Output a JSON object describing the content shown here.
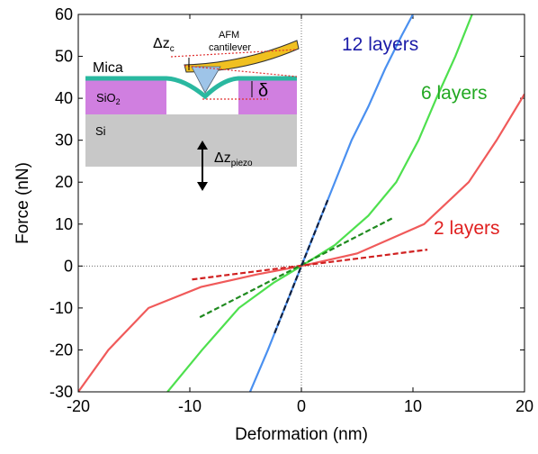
{
  "chart_data": {
    "type": "line",
    "x_label": "Deformation (nm)",
    "y_label": "Force (nN)",
    "xlim": [
      -20,
      20
    ],
    "ylim": [
      -30,
      60
    ],
    "xticks": [
      -20,
      -10,
      0,
      10,
      20
    ],
    "yticks": [
      -30,
      -20,
      -10,
      0,
      10,
      20,
      30,
      40,
      50,
      60
    ],
    "series": [
      {
        "name": "12 layers",
        "color": "#4a90f0",
        "label_color": "#1c1ca8",
        "x": [
          -4.6,
          -3,
          -1.5,
          0,
          1.5,
          3,
          4.5,
          6,
          7.5,
          9,
          10
        ],
        "values": [
          -30,
          -20,
          -10,
          0,
          10,
          20,
          30,
          38,
          47,
          55,
          60
        ]
      },
      {
        "name": "6 layers",
        "color": "#4ee04e",
        "label_color": "#22a822",
        "x": [
          -12,
          -8.9,
          -5.6,
          -2.5,
          0,
          3,
          6,
          8.5,
          10.5,
          12.1,
          13.8,
          15.3
        ],
        "values": [
          -30,
          -20,
          -10,
          -4,
          0,
          5,
          12,
          20,
          30,
          40,
          50,
          60
        ]
      },
      {
        "name": "2 layers",
        "color": "#f05a5a",
        "label_color": "#e02020",
        "x": [
          -20,
          -17.3,
          -13.7,
          -9,
          -4,
          0,
          5,
          11,
          15,
          17.5,
          20
        ],
        "values": [
          -30,
          -20,
          -10,
          -5,
          -2,
          0,
          3,
          10,
          20,
          30,
          41
        ]
      }
    ],
    "fits": [
      {
        "color": "#d02020",
        "x": [
          -9.8,
          11.3
        ],
        "values": [
          -3.2,
          3.9
        ]
      },
      {
        "color": "#1f8a1f",
        "x": [
          -9.1,
          8.3
        ],
        "values": [
          -12.2,
          11.6
        ]
      },
      {
        "color": "#102040",
        "x": [
          -2.4,
          2.4
        ],
        "values": [
          -16,
          16
        ]
      }
    ],
    "inset": {
      "afm": "AFM",
      "cantilever": "cantilever",
      "mica": "Mica",
      "dzc": {
        "text": "Δz",
        "sub": "c"
      },
      "sio2": {
        "text": "SiO",
        "sub": "2"
      },
      "delta": "δ",
      "si": "Si",
      "dzpiezo": {
        "text": "Δz",
        "sub": "piezo"
      }
    }
  }
}
